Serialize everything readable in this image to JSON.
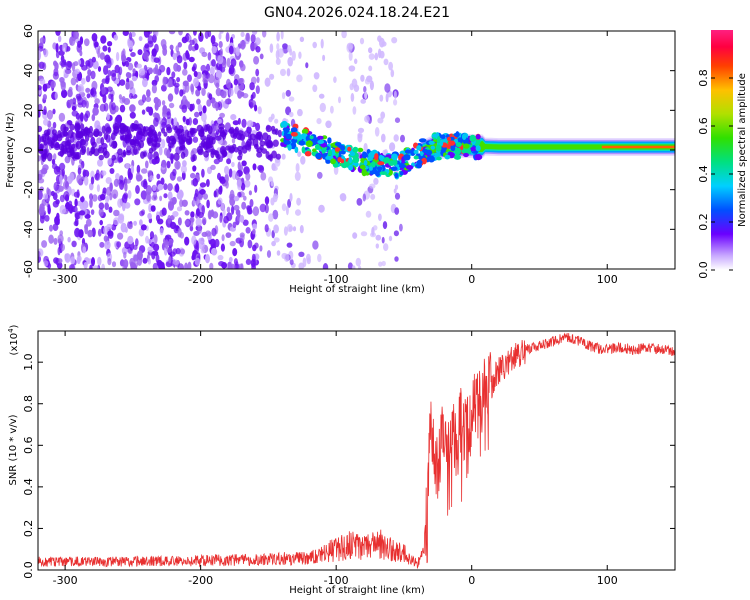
{
  "title": "GN04.2026.024.18.24.E21",
  "chart_data": [
    {
      "type": "heatmap",
      "title": "GN04.2026.024.18.24.E21",
      "xlabel": "Height of straight line (km)",
      "ylabel": "Frequency (Hz)",
      "xlim": [
        -320,
        150
      ],
      "ylim": [
        -60,
        60
      ],
      "xticks": [
        -300,
        -200,
        -100,
        0,
        100
      ],
      "xtick_labels": [
        "-300",
        "-200",
        "-100",
        "0",
        "100"
      ],
      "yticks": [
        -60,
        -40,
        -20,
        0,
        20,
        40,
        60
      ],
      "ytick_labels": [
        "-60",
        "-40",
        "-20",
        "0",
        "20",
        "40",
        "60"
      ],
      "ridge": {
        "description_points_x": [
          -140,
          -120,
          -100,
          -80,
          -60,
          -45,
          -30,
          -15,
          0,
          20,
          50,
          100,
          150
        ],
        "description_points_y": [
          8,
          4,
          -2,
          -6,
          -9,
          -4,
          1,
          2,
          2,
          1.5,
          1.5,
          1.5,
          1.5
        ]
      },
      "colorbar": {
        "label": "Normalized spectral amplitude",
        "range": [
          0,
          1
        ],
        "ticks": [
          0.0,
          0.2,
          0.4,
          0.6,
          0.8
        ],
        "tick_labels": [
          "0.0",
          "0.2",
          "0.4",
          "0.6",
          "0.8"
        ]
      }
    },
    {
      "type": "line",
      "xlabel": "Height of straight line (km)",
      "ylabel": "SNR (10 * v/v)",
      "scale_label": "(x10",
      "scale_exp": "4",
      "scale_close": ")",
      "xlim": [
        -320,
        150
      ],
      "ylim": [
        0,
        1.15
      ],
      "xticks": [
        -300,
        -200,
        -100,
        0,
        100
      ],
      "xtick_labels": [
        "-300",
        "-200",
        "-100",
        "0",
        "100"
      ],
      "yticks": [
        0.0,
        0.2,
        0.4,
        0.6,
        0.8,
        1.0
      ],
      "ytick_labels": [
        "0.0",
        "0.2",
        "0.4",
        "0.6",
        "0.8",
        "1.0"
      ],
      "series": [
        {
          "name": "SNR",
          "color": "#e83030",
          "x": [
            -320,
            -250,
            -200,
            -150,
            -120,
            -110,
            -100,
            -90,
            -80,
            -70,
            -60,
            -50,
            -45,
            -40,
            -35,
            -32,
            -30,
            -28,
            -25,
            -22,
            -20,
            -15,
            -10,
            -5,
            0,
            5,
            10,
            15,
            20,
            25,
            30,
            40,
            50,
            60,
            70,
            80,
            90,
            100,
            110,
            120,
            130,
            140,
            150
          ],
          "y": [
            0.04,
            0.04,
            0.045,
            0.05,
            0.06,
            0.08,
            0.1,
            0.12,
            0.1,
            0.14,
            0.1,
            0.08,
            0.05,
            0.03,
            0.1,
            0.45,
            0.7,
            0.55,
            0.5,
            0.65,
            0.6,
            0.62,
            0.7,
            0.72,
            0.75,
            0.8,
            0.85,
            0.9,
            0.95,
            1.0,
            1.02,
            1.06,
            1.08,
            1.1,
            1.12,
            1.1,
            1.07,
            1.06,
            1.07,
            1.06,
            1.07,
            1.06,
            1.05
          ]
        }
      ]
    }
  ]
}
